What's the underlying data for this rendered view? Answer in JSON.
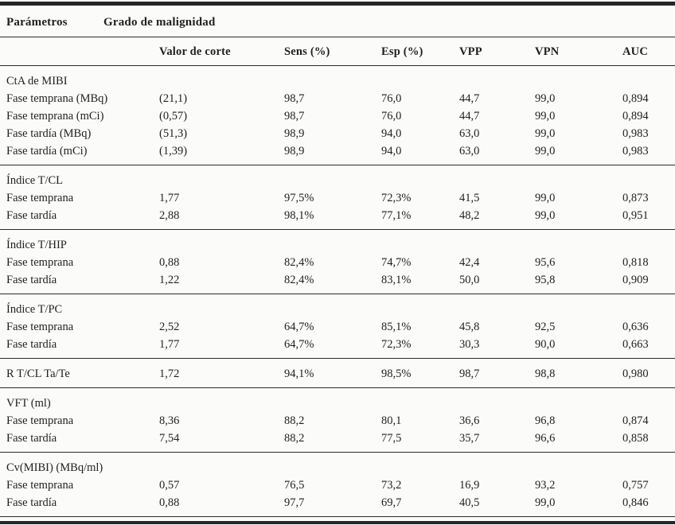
{
  "title_row": {
    "parametros": "Parámetros",
    "grado": "Grado de malignidad"
  },
  "table": {
    "columns": [
      "",
      "Valor de corte",
      "Sens (%)",
      "Esp (%)",
      "VPP",
      "VPN",
      "AUC"
    ],
    "sections": [
      {
        "header": "CtA de MIBI",
        "rows": [
          {
            "label": "Fase temprana (MBq)",
            "values": [
              "(21,1)",
              "98,7",
              "76,0",
              "44,7",
              "99,0",
              "0,894"
            ]
          },
          {
            "label": "Fase temprana (mCi)",
            "values": [
              "(0,57)",
              "98,7",
              "76,0",
              "44,7",
              "99,0",
              "0,894"
            ]
          },
          {
            "label": "Fase tardía (MBq)",
            "values": [
              "(51,3)",
              "98,9",
              "94,0",
              "63,0",
              "99,0",
              "0,983"
            ]
          },
          {
            "label": "Fase tardía (mCi)",
            "values": [
              "(1,39)",
              "98,9",
              "94,0",
              "63,0",
              "99,0",
              "0,983"
            ]
          }
        ]
      },
      {
        "header": "Índice T/CL",
        "rows": [
          {
            "label": "Fase temprana",
            "values": [
              "1,77",
              "97,5%",
              "72,3%",
              "41,5",
              "99,0",
              "0,873"
            ]
          },
          {
            "label": "Fase tardía",
            "values": [
              "2,88",
              "98,1%",
              "77,1%",
              "48,2",
              "99,0",
              "0,951"
            ]
          }
        ]
      },
      {
        "header": "Índice T/HIP",
        "rows": [
          {
            "label": "Fase temprana",
            "values": [
              "0,88",
              "82,4%",
              "74,7%",
              "42,4",
              "95,6",
              "0,818"
            ]
          },
          {
            "label": "Fase tardía",
            "values": [
              "1,22",
              "82,4%",
              "83,1%",
              "50,0",
              "95,8",
              "0,909"
            ]
          }
        ]
      },
      {
        "header": "Índice T/PC",
        "rows": [
          {
            "label": "Fase temprana",
            "values": [
              "2,52",
              "64,7%",
              "85,1%",
              "45,8",
              "92,5",
              "0,636"
            ]
          },
          {
            "label": "Fase tardía",
            "values": [
              "1,77",
              "64,7%",
              "72,3%",
              "30,3",
              "90,0",
              "0,663"
            ]
          }
        ]
      },
      {
        "header": null,
        "rows": [
          {
            "label": "R T/CL Ta/Te",
            "values": [
              "1,72",
              "94,1%",
              "98,5%",
              "98,7",
              "98,8",
              "0,980"
            ]
          }
        ]
      },
      {
        "header": "VFT (ml)",
        "rows": [
          {
            "label": "Fase temprana",
            "values": [
              "8,36",
              "88,2",
              "80,1",
              "36,6",
              "96,8",
              "0,874"
            ]
          },
          {
            "label": "Fase tardía",
            "values": [
              "7,54",
              "88,2",
              "77,5",
              "35,7",
              "96,6",
              "0,858"
            ]
          }
        ]
      },
      {
        "header": "Cv(MIBI) (MBq/ml)",
        "rows": [
          {
            "label": "Fase temprana",
            "values": [
              "0,57",
              "76,5",
              "73,2",
              "16,9",
              "93,2",
              "0,757"
            ]
          },
          {
            "label": "Fase tardía",
            "values": [
              "0,88",
              "97,7",
              "69,7",
              "40,5",
              "99,0",
              "0,846"
            ]
          }
        ]
      }
    ]
  }
}
